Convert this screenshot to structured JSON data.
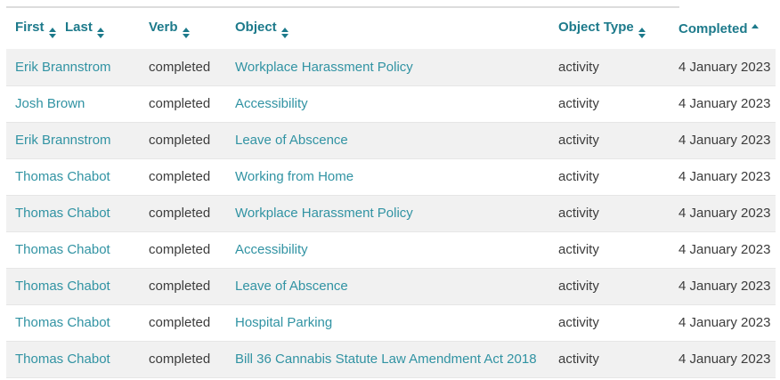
{
  "colors": {
    "header_text": "#1d7a8b",
    "link_text": "#3193a3",
    "body_text": "#3c3c3c",
    "row_stripe": "#f1f1f1",
    "row_border": "#e6e6e6",
    "top_border": "#dcdcdc"
  },
  "table": {
    "columns": [
      {
        "key": "first",
        "label": "First",
        "sort_icon": "sort-both-icon"
      },
      {
        "key": "last",
        "label": "Last",
        "sort_icon": "sort-both-icon"
      },
      {
        "key": "verb",
        "label": "Verb",
        "sort_icon": "sort-both-icon"
      },
      {
        "key": "object",
        "label": "Object",
        "sort_icon": "sort-both-icon"
      },
      {
        "key": "object_type",
        "label": "Object Type",
        "sort_icon": "sort-both-icon"
      },
      {
        "key": "completed",
        "label": "Completed",
        "sort_icon": "sort-asc-icon",
        "sorted": "ascending"
      }
    ],
    "rows": [
      {
        "name": "Erik Brannstrom",
        "verb": "completed",
        "object": "Workplace Harassment Policy",
        "object_type": "activity",
        "completed": "4 January 2023"
      },
      {
        "name": "Josh Brown",
        "verb": "completed",
        "object": "Accessibility",
        "object_type": "activity",
        "completed": "4 January 2023"
      },
      {
        "name": "Erik Brannstrom",
        "verb": "completed",
        "object": "Leave of Abscence",
        "object_type": "activity",
        "completed": "4 January 2023"
      },
      {
        "name": "Thomas Chabot",
        "verb": "completed",
        "object": "Working from Home",
        "object_type": "activity",
        "completed": "4 January 2023"
      },
      {
        "name": "Thomas Chabot",
        "verb": "completed",
        "object": "Workplace Harassment Policy",
        "object_type": "activity",
        "completed": "4 January 2023"
      },
      {
        "name": "Thomas Chabot",
        "verb": "completed",
        "object": "Accessibility",
        "object_type": "activity",
        "completed": "4 January 2023"
      },
      {
        "name": "Thomas Chabot",
        "verb": "completed",
        "object": "Leave of Abscence",
        "object_type": "activity",
        "completed": "4 January 2023"
      },
      {
        "name": "Thomas Chabot",
        "verb": "completed",
        "object": "Hospital Parking",
        "object_type": "activity",
        "completed": "4 January 2023"
      },
      {
        "name": "Thomas Chabot",
        "verb": "completed",
        "object": "Bill 36 Cannabis Statute Law Amendment Act 2018",
        "object_type": "activity",
        "completed": "4 January 2023"
      }
    ]
  }
}
